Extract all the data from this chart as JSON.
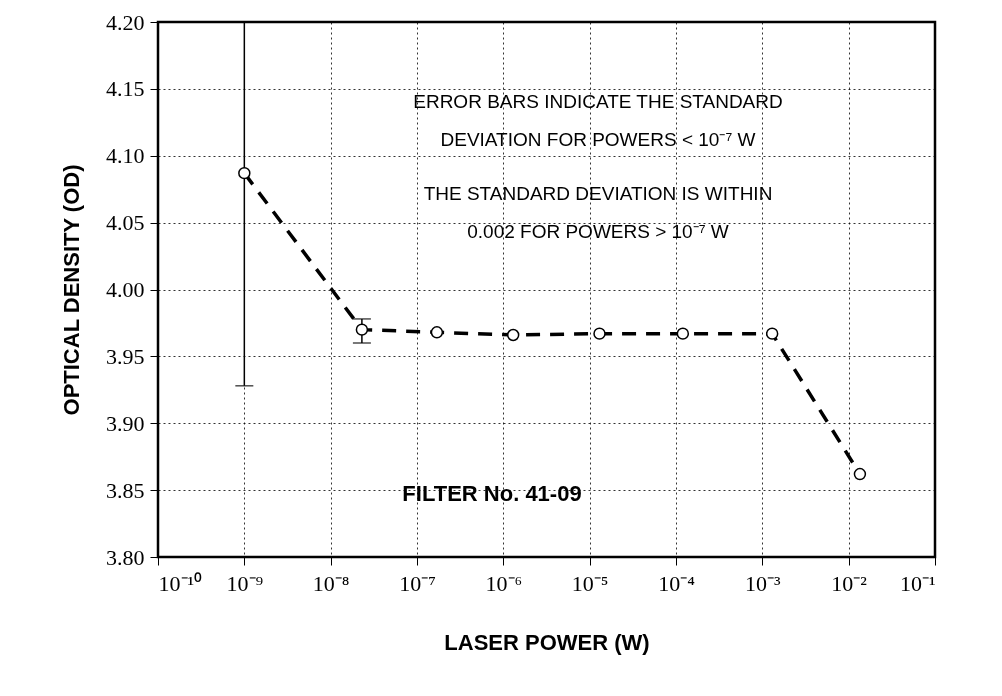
{
  "chart_data": {
    "type": "line",
    "xlabel": "LASER POWER (W)",
    "ylabel": "OPTICAL DENSITY (OD)",
    "x": [
      1e-09,
      2.3e-08,
      1.7e-07,
      1.3e-06,
      1.3e-05,
      0.00012,
      0.0013,
      0.0135
    ],
    "series": [
      {
        "color": "#000000",
        "values": [
          4.087,
          3.97,
          3.968,
          3.966,
          3.967,
          3.967,
          3.967,
          3.862
        ],
        "errors": [
          [
            3.928,
            4.2
          ],
          [
            3.96,
            3.978
          ],
          null,
          null,
          null,
          null,
          null,
          null
        ]
      }
    ],
    "xlim": [
      1e-10,
      0.1
    ],
    "ylim": [
      3.8,
      4.2
    ],
    "xticks": [
      {
        "value": 1e-10,
        "label": "10⁻¹⁰"
      },
      {
        "value": 1e-09,
        "label": "10⁻⁹"
      },
      {
        "value": 1e-08,
        "label": "10⁻⁸"
      },
      {
        "value": 1e-07,
        "label": "10⁻⁷"
      },
      {
        "value": 1e-06,
        "label": "10⁻⁶"
      },
      {
        "value": 1e-05,
        "label": "10⁻⁵"
      },
      {
        "value": 0.0001,
        "label": "10⁻⁴"
      },
      {
        "value": 0.001,
        "label": "10⁻³"
      },
      {
        "value": 0.01,
        "label": "10⁻²"
      },
      {
        "value": 0.1,
        "label": "10⁻¹"
      }
    ],
    "yticks": [
      {
        "value": 3.8,
        "label": "3.80"
      },
      {
        "value": 3.85,
        "label": "3.85"
      },
      {
        "value": 3.9,
        "label": "3.90"
      },
      {
        "value": 3.95,
        "label": "3.95"
      },
      {
        "value": 4.0,
        "label": "4.00"
      },
      {
        "value": 4.05,
        "label": "4.05"
      },
      {
        "value": 4.1,
        "label": "4.10"
      },
      {
        "value": 4.15,
        "label": "4.15"
      },
      {
        "value": 4.2,
        "label": "4.20"
      }
    ],
    "log": "x",
    "grid": true,
    "marker": "circle",
    "line_style": "dashed",
    "annotations": [
      "ERROR BARS INDICATE THE STANDARD",
      "DEVIATION FOR POWERS < 10⁻⁷ W",
      "THE STANDARD DEVIATION IS WITHIN",
      "0.002 FOR POWERS > 10⁻⁷ W",
      "FILTER No. 41-09"
    ]
  }
}
